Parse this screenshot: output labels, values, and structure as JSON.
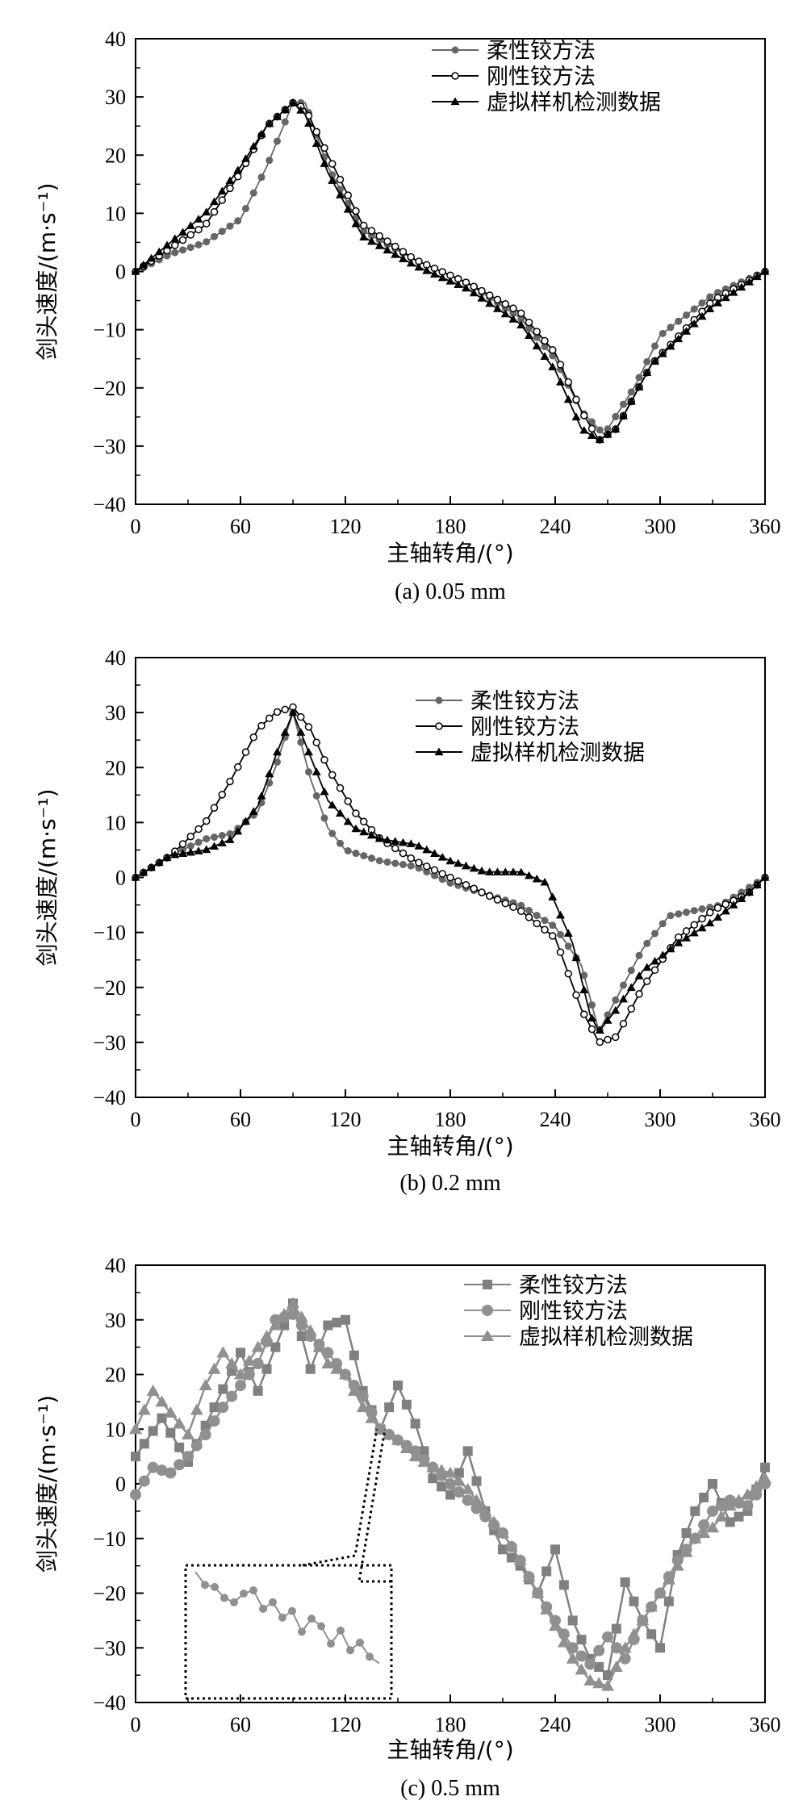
{
  "chart_data": [
    {
      "type": "line",
      "caption": "(a) 0.05 mm",
      "xlabel": "主轴转角/(°)",
      "ylabel": "剑头速度/(m·s⁻¹)",
      "xlim": [
        0,
        360
      ],
      "ylim": [
        -40,
        40
      ],
      "xticks": [
        "0",
        "60",
        "120",
        "180",
        "240",
        "300",
        "360"
      ],
      "yticks": [
        "40",
        "30",
        "20",
        "10",
        "0",
        "−10",
        "−20",
        "−30",
        "−40"
      ],
      "legend_position": "top-right",
      "series": [
        {
          "name": "柔性铰方法",
          "color": "#666666",
          "marker": "filled-circle",
          "x": [
            0,
            20,
            40,
            60,
            75,
            90,
            97,
            110,
            130,
            160,
            190,
            220,
            240,
            255,
            268,
            285,
            300,
            330,
            360
          ],
          "y": [
            0,
            3,
            5,
            9,
            18,
            29,
            29,
            18,
            7,
            2,
            -2,
            -8,
            -15,
            -24,
            -28,
            -20,
            -11,
            -4,
            0
          ]
        },
        {
          "name": "刚性铰方法",
          "color": "#000000",
          "marker": "open-circle",
          "x": [
            0,
            20,
            40,
            60,
            75,
            90,
            97,
            110,
            130,
            160,
            190,
            220,
            240,
            255,
            265,
            275,
            295,
            330,
            360
          ],
          "y": [
            0,
            4,
            8,
            17,
            25,
            29,
            28,
            20,
            8,
            2,
            -2,
            -7,
            -14,
            -24,
            -29,
            -27,
            -16,
            -5,
            0
          ]
        },
        {
          "name": "虚拟样机检测数据",
          "color": "#000000",
          "marker": "filled-triangle",
          "x": [
            0,
            20,
            40,
            60,
            75,
            90,
            97,
            110,
            130,
            160,
            190,
            220,
            240,
            255,
            265,
            275,
            295,
            330,
            360
          ],
          "y": [
            0,
            5,
            10,
            18,
            25,
            29,
            27,
            17,
            6,
            1,
            -3,
            -9,
            -17,
            -27,
            -29,
            -27,
            -16,
            -6,
            0
          ]
        }
      ]
    },
    {
      "type": "line",
      "caption": "(b) 0.2 mm",
      "xlabel": "主轴转角/(°)",
      "ylabel": "剑头速度/(m·s⁻¹)",
      "xlim": [
        0,
        360
      ],
      "ylim": [
        -40,
        40
      ],
      "xticks": [
        "0",
        "60",
        "120",
        "180",
        "240",
        "300",
        "360"
      ],
      "yticks": [
        "40",
        "30",
        "20",
        "10",
        "0",
        "−10",
        "−20",
        "−30",
        "−40"
      ],
      "legend_position": "top-right",
      "series": [
        {
          "name": "柔性铰方法",
          "color": "#666666",
          "marker": "filled-circle",
          "x": [
            0,
            20,
            40,
            55,
            70,
            80,
            90,
            100,
            110,
            120,
            140,
            160,
            180,
            200,
            220,
            240,
            255,
            265,
            275,
            290,
            305,
            320,
            335,
            350,
            360
          ],
          "y": [
            0,
            4,
            7,
            8,
            12,
            20,
            30,
            18,
            9,
            5,
            3,
            2,
            -1,
            -3,
            -5,
            -9,
            -16,
            -28,
            -22,
            -13,
            -7,
            -6,
            -5,
            -2,
            0
          ]
        },
        {
          "name": "刚性铰方法",
          "color": "#000000",
          "marker": "open-circle",
          "x": [
            0,
            20,
            40,
            55,
            70,
            80,
            90,
            100,
            110,
            125,
            140,
            160,
            180,
            200,
            220,
            240,
            255,
            265,
            275,
            290,
            310,
            330,
            350,
            360
          ],
          "y": [
            0,
            4,
            10,
            18,
            27,
            30,
            31,
            27,
            20,
            12,
            7,
            3,
            0,
            -3,
            -6,
            -11,
            -24,
            -30,
            -29,
            -20,
            -11,
            -6,
            -3,
            0
          ]
        },
        {
          "name": "虚拟样机检测数据",
          "color": "#000000",
          "marker": "filled-triangle",
          "x": [
            0,
            20,
            40,
            55,
            70,
            80,
            90,
            100,
            110,
            125,
            140,
            160,
            180,
            200,
            220,
            235,
            250,
            260,
            265,
            275,
            290,
            310,
            330,
            350,
            360
          ],
          "y": [
            0,
            4,
            5,
            7,
            13,
            22,
            30,
            22,
            14,
            9,
            7,
            6,
            3,
            1,
            1,
            -1,
            -12,
            -25,
            -28,
            -24,
            -17,
            -12,
            -8,
            -3,
            0
          ]
        }
      ]
    },
    {
      "type": "line",
      "caption": "(c) 0.5 mm",
      "xlabel": "主轴转角/(°)",
      "ylabel": "剑头速度/(m·s⁻¹)",
      "xlim": [
        0,
        360
      ],
      "ylim": [
        -40,
        40
      ],
      "xticks": [
        "0",
        "60",
        "120",
        "180",
        "240",
        "300",
        "360"
      ],
      "yticks": [
        "40",
        "30",
        "20",
        "10",
        "0",
        "−10",
        "−20",
        "−30",
        "−40"
      ],
      "legend_position": "top-right",
      "inset": "zoomed detail of 刚性铰方法 near 140°",
      "series": [
        {
          "name": "柔性铰方法",
          "color": "#808080",
          "marker": "filled-square",
          "x": [
            0,
            15,
            30,
            45,
            60,
            70,
            80,
            90,
            100,
            110,
            120,
            130,
            140,
            150,
            160,
            170,
            180,
            190,
            200,
            210,
            220,
            230,
            240,
            250,
            260,
            270,
            280,
            290,
            300,
            310,
            320,
            330,
            340,
            350,
            360
          ],
          "y": [
            5,
            12,
            4,
            14,
            24,
            17,
            25,
            33,
            21,
            29,
            30,
            17,
            10,
            18,
            11,
            1,
            -2,
            6,
            -5,
            -12,
            -15,
            -20,
            -12,
            -25,
            -32,
            -35,
            -18,
            -25,
            -30,
            -13,
            -5,
            0,
            -7,
            -5,
            3
          ]
        },
        {
          "name": "刚性铰方法",
          "color": "#909090",
          "marker": "filled-circle",
          "x": [
            0,
            10,
            20,
            30,
            40,
            50,
            60,
            70,
            80,
            90,
            100,
            110,
            120,
            130,
            140,
            150,
            160,
            170,
            180,
            190,
            200,
            210,
            220,
            230,
            240,
            250,
            260,
            270,
            280,
            290,
            300,
            310,
            320,
            330,
            340,
            350,
            360
          ],
          "y": [
            -2,
            3,
            2,
            5,
            9,
            14,
            18,
            22,
            30,
            31,
            27,
            24,
            20,
            16,
            10,
            8,
            6,
            3,
            0,
            -3,
            -6,
            -9,
            -14,
            -20,
            -25,
            -30,
            -33,
            -28,
            -32,
            -25,
            -20,
            -14,
            -10,
            -5,
            -3,
            -4,
            0
          ]
        },
        {
          "name": "虚拟样机检测数据",
          "color": "#909090",
          "marker": "filled-triangle",
          "x": [
            0,
            10,
            20,
            30,
            40,
            50,
            60,
            70,
            80,
            90,
            100,
            110,
            120,
            130,
            140,
            150,
            160,
            170,
            180,
            190,
            200,
            210,
            220,
            230,
            240,
            250,
            260,
            270,
            280,
            290,
            300,
            310,
            320,
            330,
            340,
            350,
            360
          ],
          "y": [
            10,
            17,
            13,
            9,
            18,
            24,
            20,
            25,
            29,
            33,
            28,
            22,
            20,
            14,
            10,
            8,
            5,
            3,
            2,
            -1,
            -5,
            -9,
            -14,
            -20,
            -26,
            -32,
            -36,
            -37,
            -30,
            -25,
            -20,
            -15,
            -10,
            -8,
            -4,
            -2,
            1
          ]
        }
      ]
    }
  ]
}
